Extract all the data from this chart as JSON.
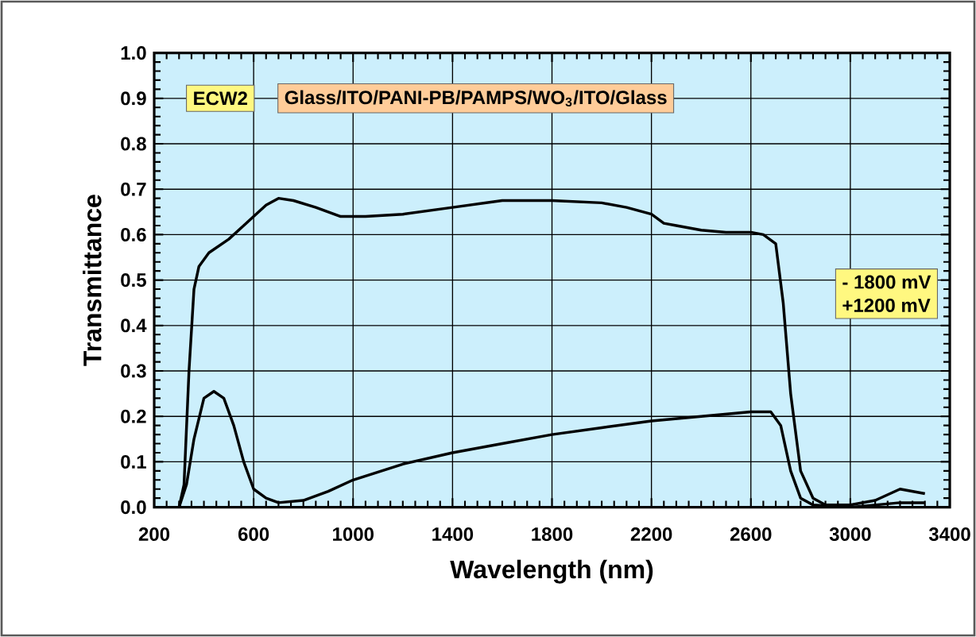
{
  "chart_data": {
    "type": "line",
    "xlabel": "Wavelength (nm)",
    "ylabel": "Transmittance",
    "annotations": [
      "ECW2",
      "Glass/ITO/PANI-PB/PAMPS/WO$_{3}$/ITO/Glass"
    ],
    "xlim": [
      200,
      3400
    ],
    "xticks": [
      200,
      600,
      1000,
      1400,
      1800,
      2200,
      2600,
      3000,
      3400
    ],
    "ylim": [
      0,
      1.0
    ],
    "yticks": [
      {
        "value": 0,
        "label": "0.0"
      },
      0.1,
      0.2,
      0.3,
      0.4,
      0.5,
      0.6,
      0.7,
      0.8,
      0.9,
      {
        "value": 1.0,
        "label": "1.0"
      }
    ],
    "grid": true,
    "legend": "right",
    "marker": "none",
    "line_style": "solid",
    "series": [
      {
        "name": "- 1800 mV",
        "color": "#000000",
        "x": [
          300,
          320,
          340,
          360,
          380,
          420,
          500,
          560,
          600,
          650,
          700,
          760,
          850,
          950,
          1050,
          1200,
          1400,
          1600,
          1800,
          2000,
          2100,
          2200,
          2250,
          2300,
          2400,
          2500,
          2600,
          2650,
          2700,
          2730,
          2760,
          2800,
          2850,
          2900,
          3000,
          3100,
          3200,
          3250,
          3300
        ],
        "values": [
          0,
          0.05,
          0.3,
          0.48,
          0.53,
          0.56,
          0.59,
          0.62,
          0.64,
          0.665,
          0.68,
          0.675,
          0.66,
          0.64,
          0.64,
          0.645,
          0.66,
          0.675,
          0.675,
          0.67,
          0.66,
          0.645,
          0.625,
          0.62,
          0.61,
          0.605,
          0.605,
          0.6,
          0.58,
          0.45,
          0.25,
          0.08,
          0.02,
          0.005,
          0.005,
          0.015,
          0.04,
          0.035,
          0.03
        ]
      },
      {
        "name": "+1200 mV",
        "color": "#000000",
        "x": [
          300,
          330,
          360,
          400,
          440,
          480,
          520,
          560,
          600,
          650,
          700,
          800,
          900,
          1000,
          1200,
          1400,
          1600,
          1800,
          2000,
          2200,
          2400,
          2600,
          2680,
          2720,
          2760,
          2800,
          2850,
          3000,
          3200,
          3300
        ],
        "values": [
          0,
          0.05,
          0.15,
          0.24,
          0.255,
          0.24,
          0.18,
          0.1,
          0.04,
          0.02,
          0.01,
          0.015,
          0.035,
          0.06,
          0.095,
          0.12,
          0.14,
          0.16,
          0.175,
          0.19,
          0.2,
          0.21,
          0.21,
          0.18,
          0.08,
          0.02,
          0.005,
          0,
          0.01,
          0.01
        ]
      }
    ]
  }
}
